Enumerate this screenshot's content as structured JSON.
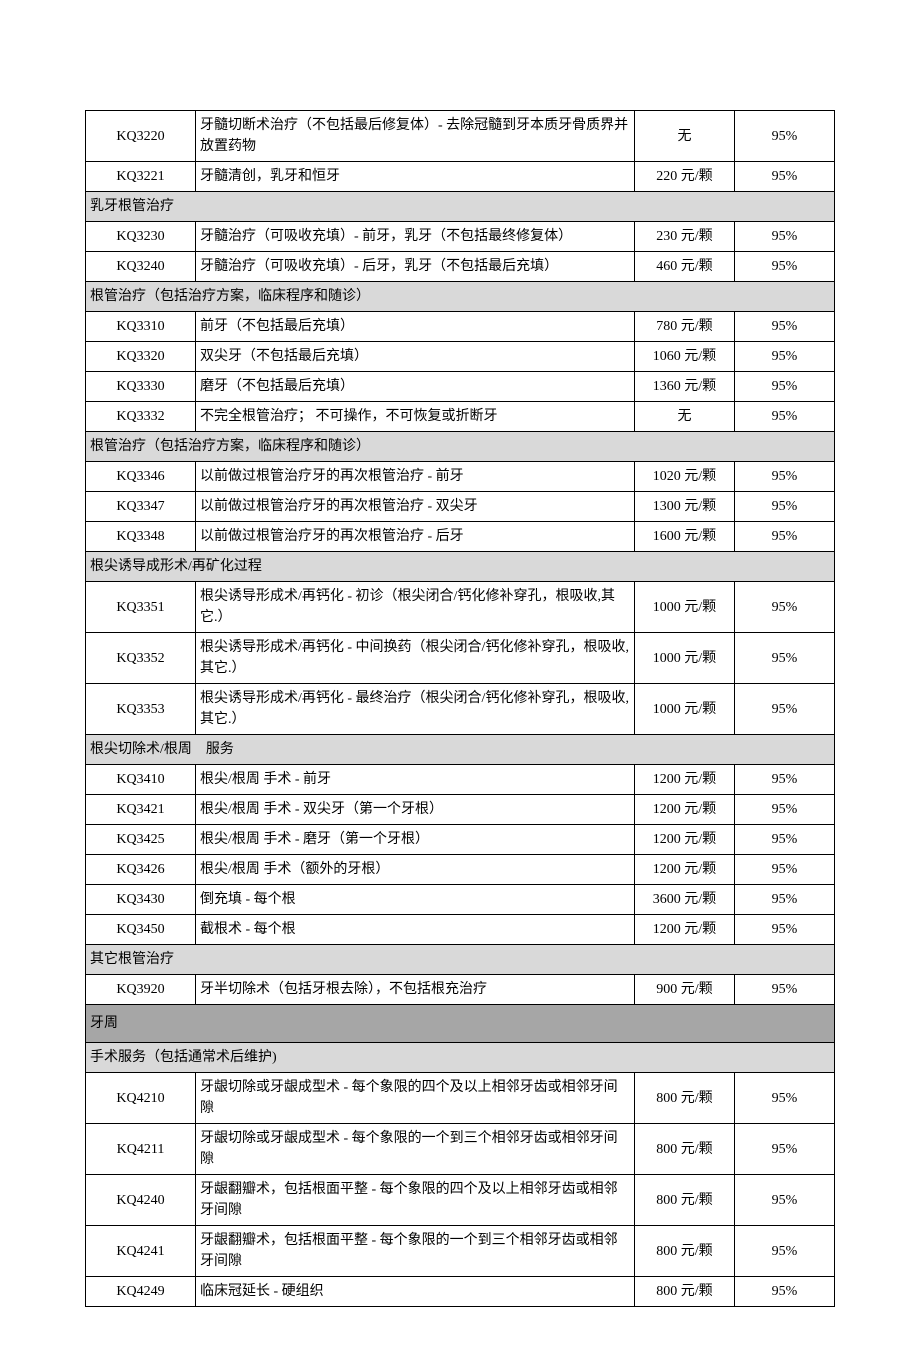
{
  "colors": {
    "background": "#ffffff",
    "text": "#000000",
    "border": "#000000",
    "section_bg": "#d9d9d9",
    "major_bg": "#a6a6a6"
  },
  "columns": {
    "code_width": 110,
    "price_width": 100,
    "pct_width": 100
  },
  "typography": {
    "font_family": "SimSun",
    "font_size": 14,
    "line_height": 1.5
  },
  "rows": [
    {
      "type": "data",
      "code": "KQ3220",
      "desc": "牙髓切断术治疗（不包括最后修复体）- 去除冠髓到牙本质牙骨质界并放置药物",
      "price": "无",
      "pct": "95%"
    },
    {
      "type": "data",
      "code": "KQ3221",
      "desc": "牙髓清创，乳牙和恒牙",
      "price": "220 元/颗",
      "pct": "95%"
    },
    {
      "type": "section",
      "label": "乳牙根管治疗"
    },
    {
      "type": "data",
      "code": "KQ3230",
      "desc": "牙髓治疗（可吸收充填）- 前牙，乳牙（不包括最终修复体）",
      "price": "230 元/颗",
      "pct": "95%"
    },
    {
      "type": "data",
      "code": "KQ3240",
      "desc": "牙髓治疗（可吸收充填）- 后牙，乳牙（不包括最后充填）",
      "price": "460 元/颗",
      "pct": "95%"
    },
    {
      "type": "section",
      "label": "根管治疗（包括治疗方案，临床程序和随诊）"
    },
    {
      "type": "data",
      "code": "KQ3310",
      "desc": "前牙（不包括最后充填）",
      "price": "780 元/颗",
      "pct": "95%"
    },
    {
      "type": "data",
      "code": "KQ3320",
      "desc": "双尖牙（不包括最后充填）",
      "price": "1060 元/颗",
      "pct": "95%"
    },
    {
      "type": "data",
      "code": "KQ3330",
      "desc": "磨牙（不包括最后充填）",
      "price": "1360 元/颗",
      "pct": "95%"
    },
    {
      "type": "data",
      "code": "KQ3332",
      "desc": "不完全根管治疗； 不可操作，不可恢复或折断牙",
      "price": "无",
      "pct": "95%"
    },
    {
      "type": "section",
      "label": "根管治疗（包括治疗方案，临床程序和随诊）"
    },
    {
      "type": "data",
      "code": "KQ3346",
      "desc": "以前做过根管治疗牙的再次根管治疗 - 前牙",
      "price": "1020 元/颗",
      "pct": "95%"
    },
    {
      "type": "data",
      "code": "KQ3347",
      "desc": "以前做过根管治疗牙的再次根管治疗 - 双尖牙",
      "price": "1300 元/颗",
      "pct": "95%"
    },
    {
      "type": "data",
      "code": "KQ3348",
      "desc": "以前做过根管治疗牙的再次根管治疗 - 后牙",
      "price": "1600 元/颗",
      "pct": "95%"
    },
    {
      "type": "section",
      "label": "根尖诱导成形术/再矿化过程"
    },
    {
      "type": "data",
      "code": "KQ3351",
      "desc": "根尖诱导形成术/再钙化 - 初诊（根尖闭合/钙化修补穿孔，根吸收,其它.）",
      "price": "1000 元/颗",
      "pct": "95%"
    },
    {
      "type": "data",
      "code": "KQ3352",
      "desc": "根尖诱导形成术/再钙化 - 中间换药（根尖闭合/钙化修补穿孔，根吸收,其它.）",
      "price": "1000 元/颗",
      "pct": "95%"
    },
    {
      "type": "data",
      "code": "KQ3353",
      "desc": "根尖诱导形成术/再钙化 - 最终治疗（根尖闭合/钙化修补穿孔，根吸收,其它.）",
      "price": "1000 元/颗",
      "pct": "95%"
    },
    {
      "type": "section",
      "label": "根尖切除术/根周　服务"
    },
    {
      "type": "data",
      "code": "KQ3410",
      "desc": "根尖/根周 手术 - 前牙",
      "price": "1200 元/颗",
      "pct": "95%"
    },
    {
      "type": "data",
      "code": "KQ3421",
      "desc": "根尖/根周 手术 - 双尖牙（第一个牙根）",
      "price": "1200 元/颗",
      "pct": "95%"
    },
    {
      "type": "data",
      "code": "KQ3425",
      "desc": "根尖/根周 手术 - 磨牙（第一个牙根）",
      "price": "1200 元/颗",
      "pct": "95%"
    },
    {
      "type": "data",
      "code": "KQ3426",
      "desc": "根尖/根周 手术（额外的牙根）",
      "price": "1200 元/颗",
      "pct": "95%"
    },
    {
      "type": "data",
      "code": "KQ3430",
      "desc": "倒充填 - 每个根",
      "price": "3600 元/颗",
      "pct": "95%"
    },
    {
      "type": "data",
      "code": "KQ3450",
      "desc": "截根术 - 每个根",
      "price": "1200 元/颗",
      "pct": "95%"
    },
    {
      "type": "section",
      "label": "其它根管治疗"
    },
    {
      "type": "data",
      "code": "KQ3920",
      "desc": "牙半切除术（包括牙根去除），不包括根充治疗",
      "price": "900 元/颗",
      "pct": "95%"
    },
    {
      "type": "major",
      "label": "牙周"
    },
    {
      "type": "section",
      "label": "手术服务（包括通常术后维护)"
    },
    {
      "type": "data",
      "code": "KQ4210",
      "desc": "牙龈切除或牙龈成型术 - 每个象限的四个及以上相邻牙齿或相邻牙间隙",
      "price": "800 元/颗",
      "pct": "95%"
    },
    {
      "type": "data",
      "code": "KQ4211",
      "desc": "牙龈切除或牙龈成型术 - 每个象限的一个到三个相邻牙齿或相邻牙间隙",
      "price": "800 元/颗",
      "pct": "95%"
    },
    {
      "type": "data",
      "code": "KQ4240",
      "desc": "牙龈翻瓣术，包括根面平整 - 每个象限的四个及以上相邻牙齿或相邻牙间隙",
      "price": "800 元/颗",
      "pct": "95%"
    },
    {
      "type": "data",
      "code": "KQ4241",
      "desc": "牙龈翻瓣术，包括根面平整 - 每个象限的一个到三个相邻牙齿或相邻牙间隙",
      "price": "800 元/颗",
      "pct": "95%"
    },
    {
      "type": "data",
      "code": "KQ4249",
      "desc": "临床冠延长 - 硬组织",
      "price": "800 元/颗",
      "pct": "95%"
    }
  ]
}
